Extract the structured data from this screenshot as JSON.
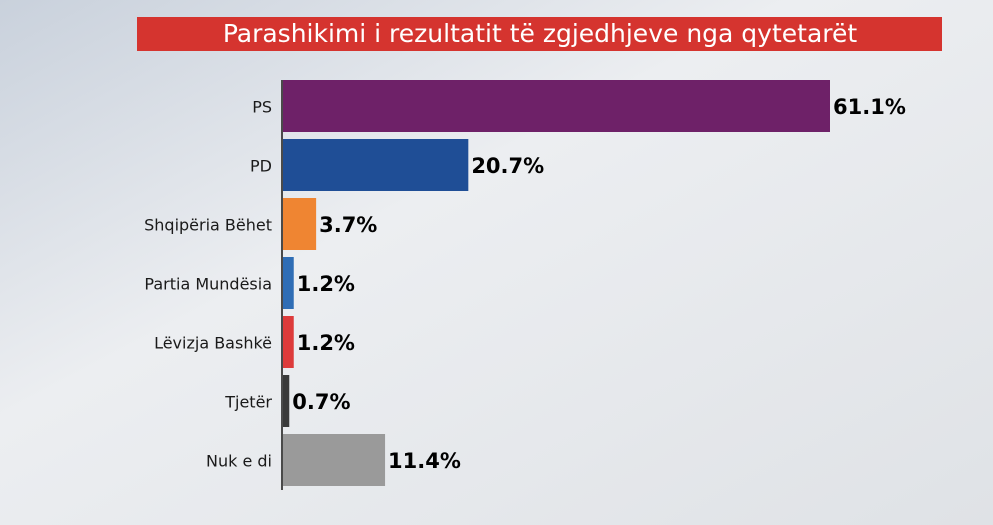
{
  "chart_data": {
    "type": "bar",
    "orientation": "horizontal",
    "title": "Parashikimi i rezultatit të zgjedhjeve nga qytetarët",
    "categories": [
      "PS",
      "PD",
      "Shqipëria Bëhet",
      "Partia Mundësia",
      "Lëvizja Bashkë",
      "Tjetër",
      "Nuk e di"
    ],
    "values": [
      61.1,
      20.7,
      3.7,
      1.2,
      1.2,
      0.7,
      11.4
    ],
    "value_labels": [
      "61.1%",
      "20.7%",
      "3.7%",
      "1.2%",
      "1.2%",
      "0.7%",
      "11.4%"
    ],
    "colors": [
      "#6e2168",
      "#1f4e96",
      "#ef8532",
      "#2f6db5",
      "#dd3b3b",
      "#3a3a3a",
      "#9a9a9a"
    ]
  }
}
